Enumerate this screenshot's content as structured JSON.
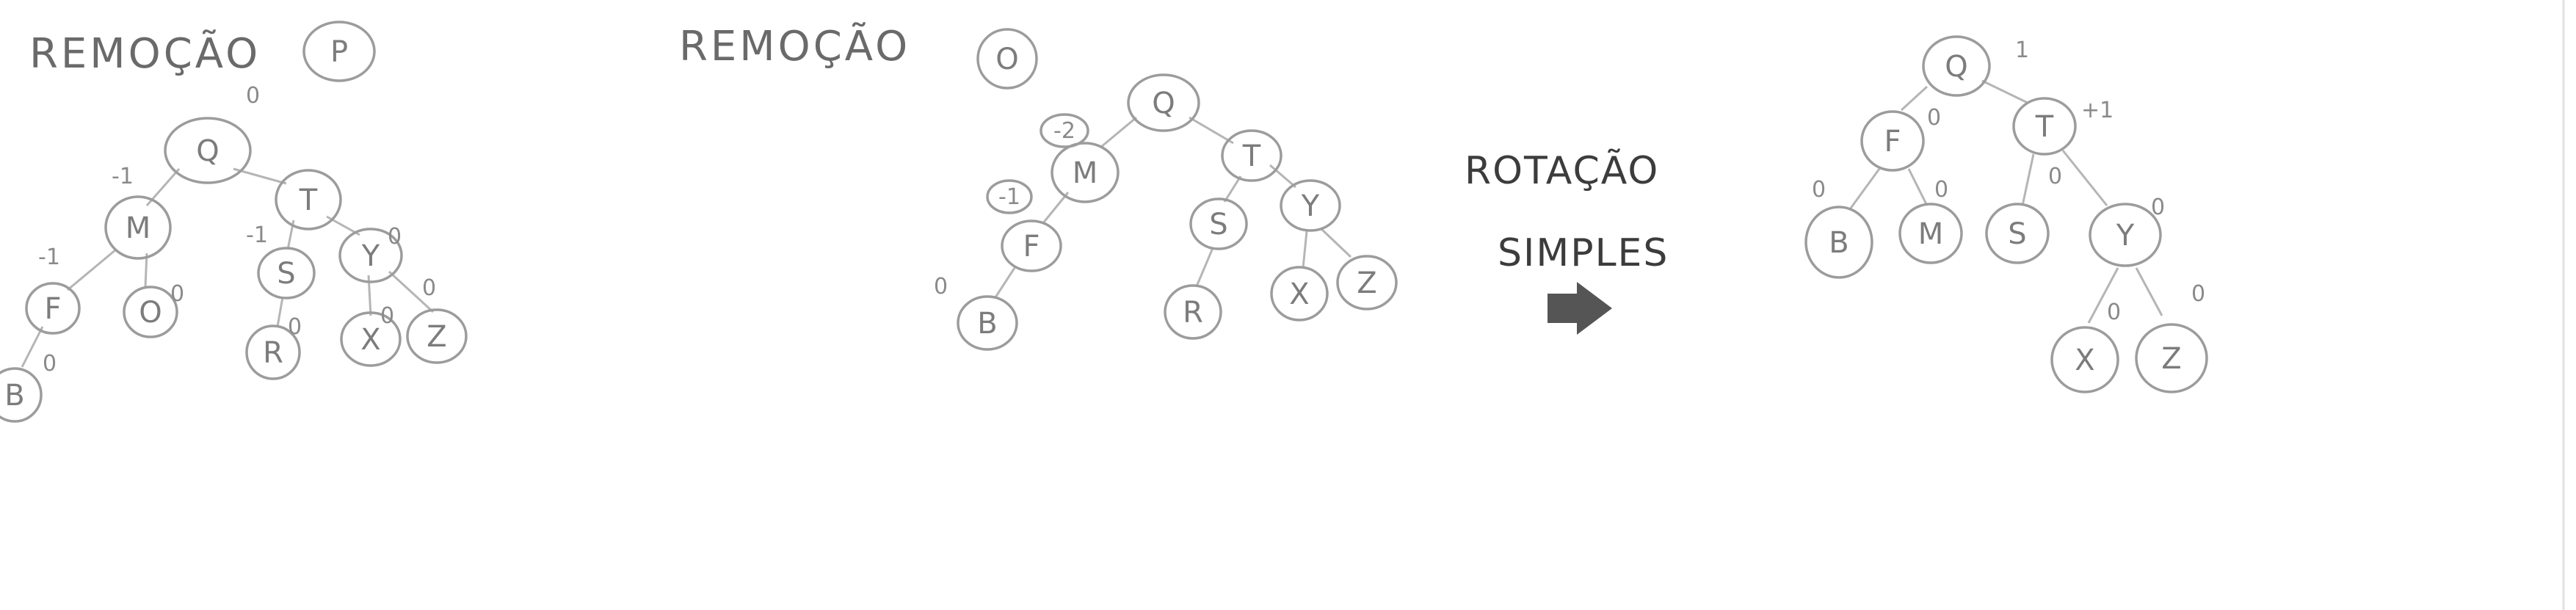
{
  "diagrams": [
    {
      "title": "REMOÇÃO",
      "removed": "P",
      "nodes": [
        {
          "label": "Q",
          "balance": "0"
        },
        {
          "label": "M",
          "balance": "-1"
        },
        {
          "label": "T",
          "balance": ""
        },
        {
          "label": "F",
          "balance": "-1"
        },
        {
          "label": "O",
          "balance": "0"
        },
        {
          "label": "S",
          "balance": "-1"
        },
        {
          "label": "Y",
          "balance": "0"
        },
        {
          "label": "B",
          "balance": "0"
        },
        {
          "label": "R",
          "balance": "0"
        },
        {
          "label": "X",
          "balance": "0"
        },
        {
          "label": "Z",
          "balance": "0"
        }
      ]
    },
    {
      "title": "REMOÇÃO",
      "removed": "O",
      "nodes": [
        {
          "label": "Q",
          "balance": ""
        },
        {
          "label": "M",
          "balance": "-2"
        },
        {
          "label": "T",
          "balance": ""
        },
        {
          "label": "F",
          "balance": "-1"
        },
        {
          "label": "S",
          "balance": ""
        },
        {
          "label": "Y",
          "balance": ""
        },
        {
          "label": "B",
          "balance": "0"
        },
        {
          "label": "R",
          "balance": ""
        },
        {
          "label": "X",
          "balance": ""
        },
        {
          "label": "Z",
          "balance": ""
        }
      ]
    },
    {
      "nodes": [
        {
          "label": "Q",
          "balance": "1"
        },
        {
          "label": "F",
          "balance": "0"
        },
        {
          "label": "T",
          "balance": "+1"
        },
        {
          "label": "B",
          "balance": "0"
        },
        {
          "label": "M",
          "balance": "0"
        },
        {
          "label": "S",
          "balance": "0"
        },
        {
          "label": "Y",
          "balance": "0"
        },
        {
          "label": "X",
          "balance": "0"
        },
        {
          "label": "Z",
          "balance": "0"
        }
      ]
    }
  ],
  "rotation": {
    "line1": "ROTAÇÃO",
    "line2": "SIMPLES",
    "arrow_color": "#555555"
  }
}
